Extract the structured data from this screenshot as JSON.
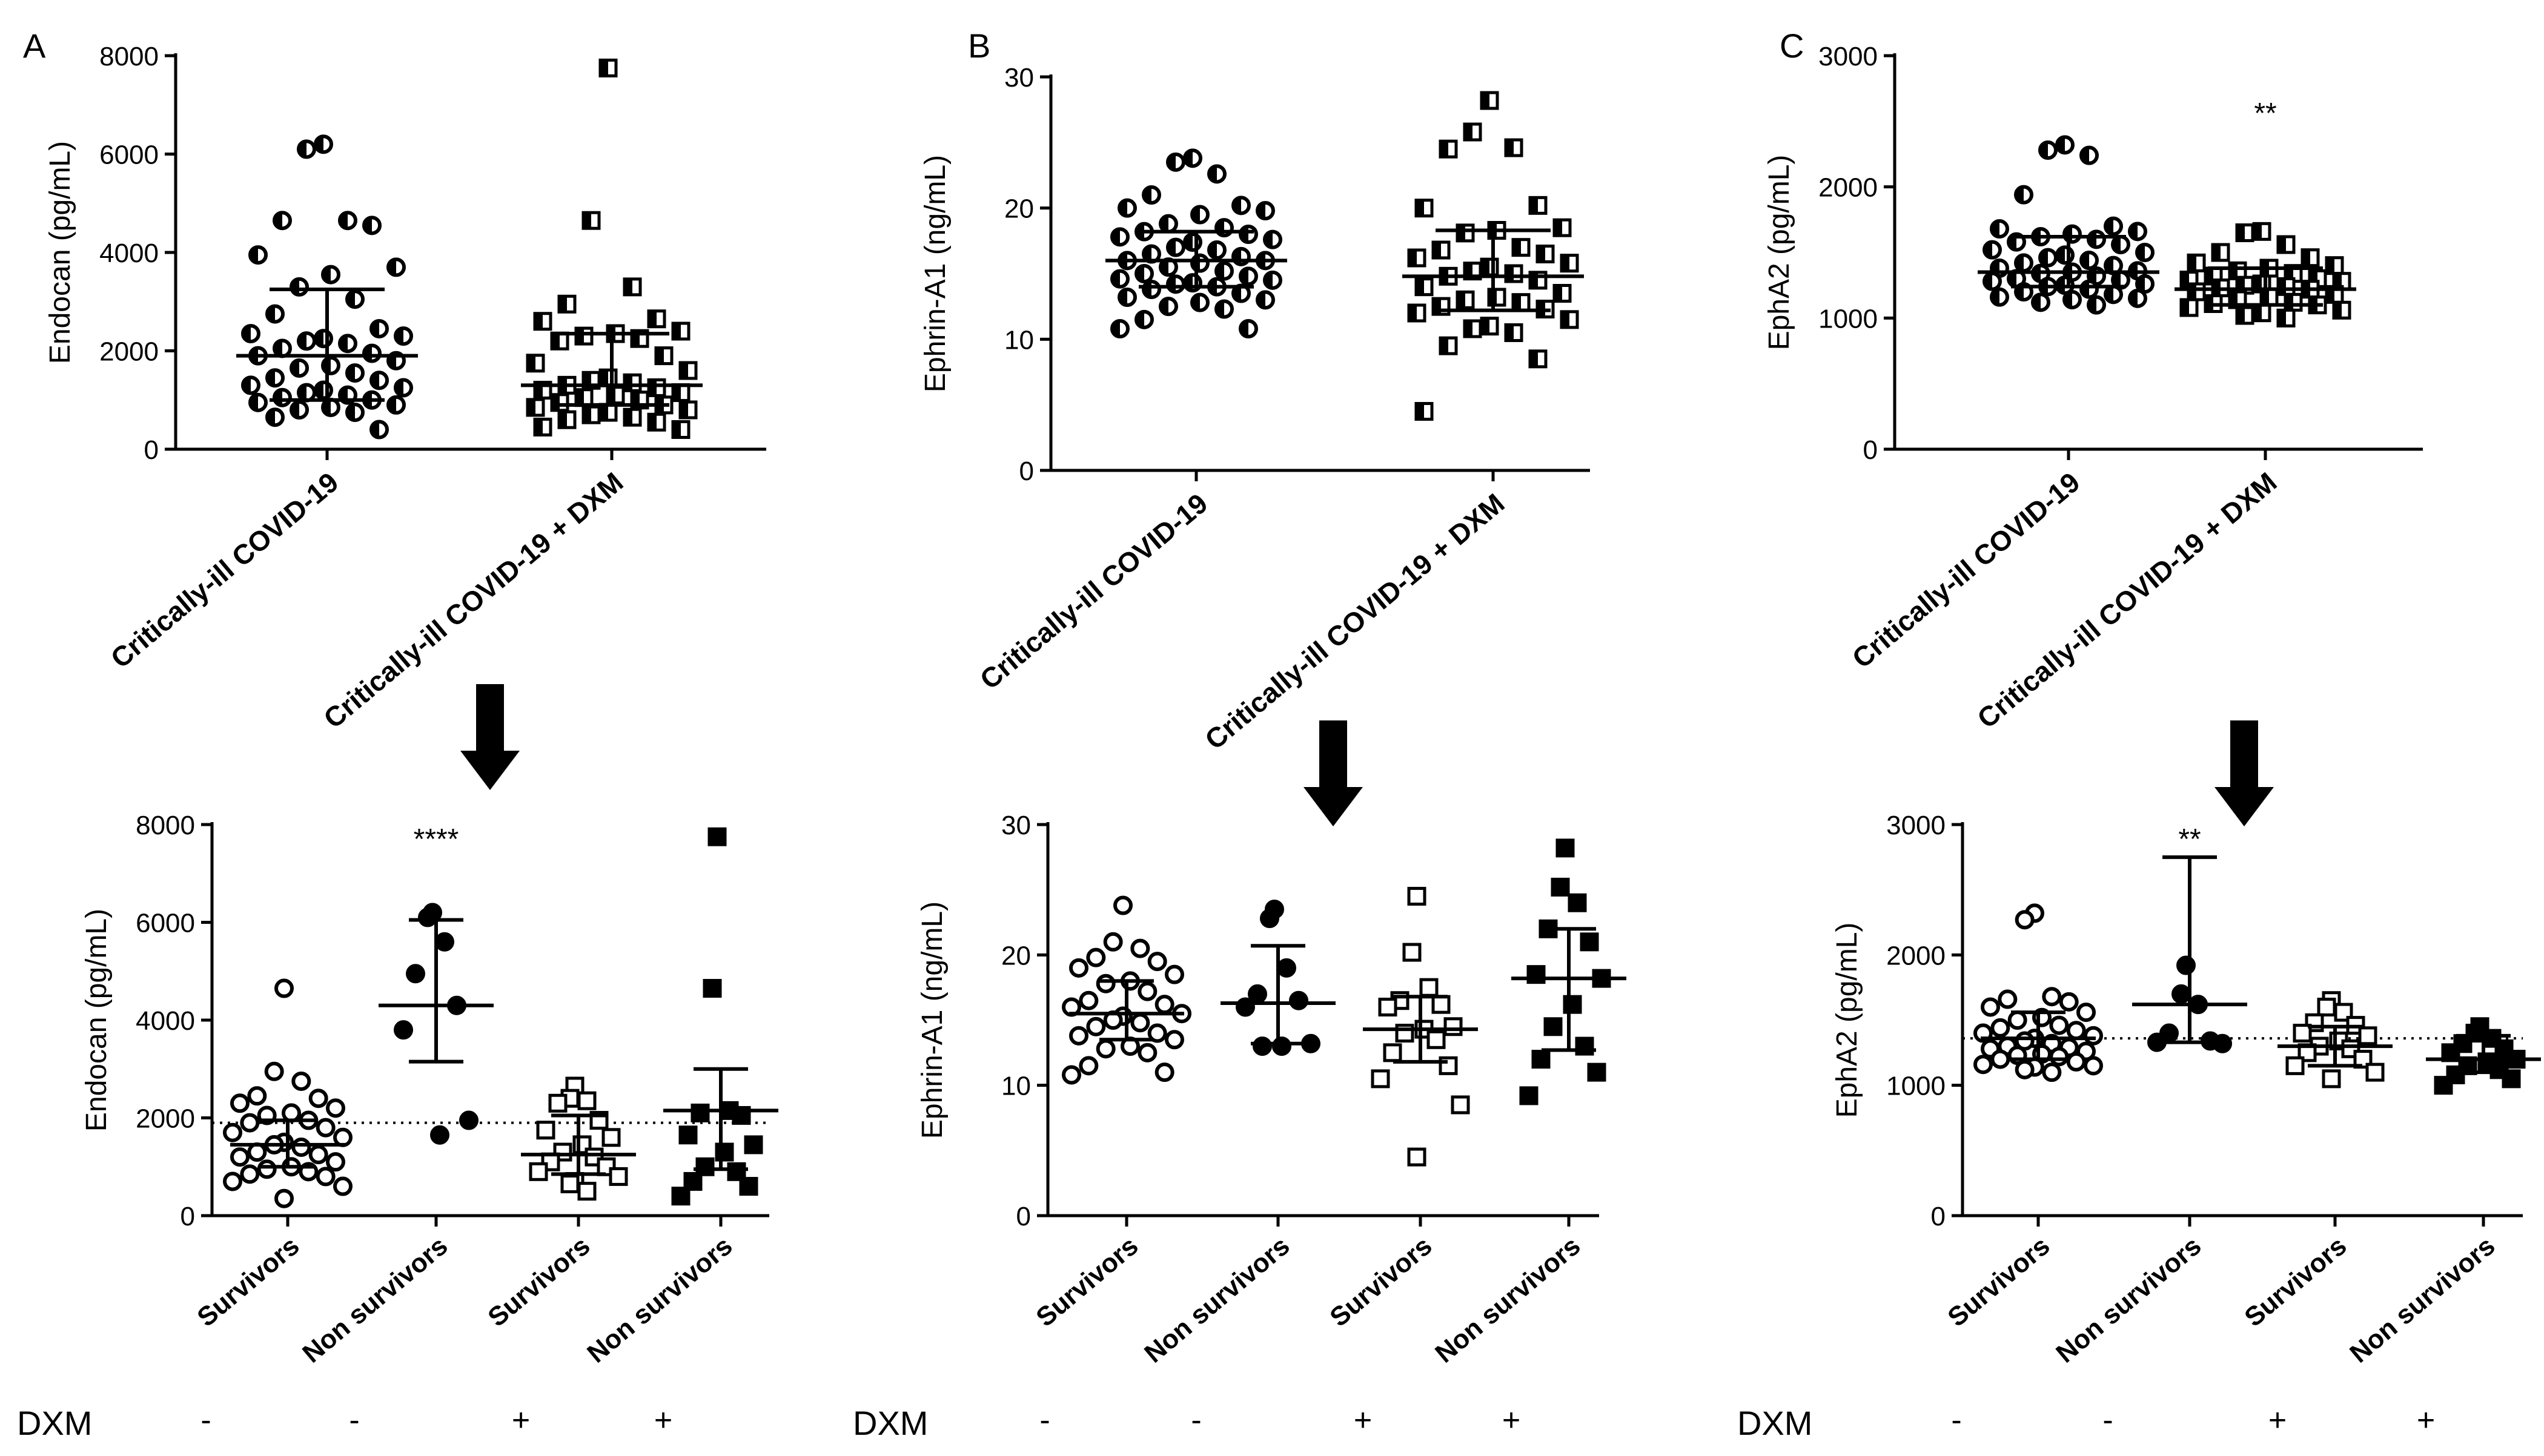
{
  "chart_data": [
    {
      "panel": "A",
      "type": "scatter",
      "row": "top",
      "ylabel": "Endocan (pg/mL)",
      "ylim": [
        0,
        8000
      ],
      "yticks": [
        0,
        2000,
        4000,
        6000,
        8000
      ],
      "categories": [
        "Critically-ill COVID-19",
        "Critically-ill COVID-19 + DXM"
      ],
      "marker_styles": [
        "half-circle",
        "half-square"
      ],
      "stats": [
        {
          "median": 1900,
          "q1": 1000,
          "q3": 3250
        },
        {
          "median": 1300,
          "q1": 900,
          "q3": 2350
        }
      ],
      "annotations": [
        "",
        ""
      ],
      "points": [
        [
          6200,
          6100,
          4650,
          4650,
          4550,
          3950,
          3700,
          3550,
          3300,
          3050,
          2750,
          2450,
          2350,
          2300,
          2250,
          2200,
          2150,
          2050,
          1950,
          1900,
          1800,
          1700,
          1650,
          1550,
          1450,
          1400,
          1300,
          1250,
          1200,
          1150,
          1100,
          1050,
          1000,
          950,
          900,
          850,
          800,
          750,
          650,
          400
        ],
        [
          7750,
          4650,
          3300,
          2950,
          2650,
          2600,
          2400,
          2350,
          2300,
          2250,
          2200,
          1900,
          1750,
          1600,
          1450,
          1400,
          1350,
          1300,
          1250,
          1200,
          1150,
          1100,
          1050,
          1000,
          950,
          900,
          850,
          800,
          750,
          700,
          650,
          600,
          550,
          450,
          400
        ]
      ]
    },
    {
      "panel": "B",
      "type": "scatter",
      "row": "top",
      "ylabel": "Ephrin-A1 (ng/mL)",
      "ylim": [
        0,
        30
      ],
      "yticks": [
        0,
        10,
        20,
        30
      ],
      "categories": [
        "Critically-ill COVID-19",
        "Critically-ill COVID-19 + DXM"
      ],
      "marker_styles": [
        "half-circle",
        "half-square"
      ],
      "stats": [
        {
          "median": 16.0,
          "q1": 14.0,
          "q3": 18.2
        },
        {
          "median": 14.8,
          "q1": 12.2,
          "q3": 18.3
        }
      ],
      "annotations": [
        "",
        ""
      ],
      "points": [
        [
          23.8,
          23.5,
          22.6,
          21.0,
          20.2,
          20.0,
          19.8,
          19.5,
          18.8,
          18.5,
          18.2,
          18.0,
          17.8,
          17.6,
          17.4,
          17.0,
          16.8,
          16.5,
          16.3,
          16.0,
          16.0,
          15.8,
          15.5,
          15.2,
          15.0,
          14.8,
          14.6,
          14.5,
          14.3,
          14.2,
          14.0,
          13.8,
          13.5,
          13.2,
          13.0,
          12.8,
          12.5,
          12.3,
          11.5,
          10.8,
          10.8
        ],
        [
          28.2,
          25.8,
          24.6,
          24.5,
          20.2,
          20.0,
          18.5,
          18.3,
          18.1,
          17.0,
          16.8,
          16.5,
          16.2,
          15.8,
          15.5,
          15.2,
          15.0,
          14.8,
          14.5,
          14.0,
          13.5,
          13.2,
          13.0,
          12.8,
          12.5,
          12.3,
          12.0,
          11.5,
          11.0,
          10.8,
          10.5,
          9.5,
          8.5,
          4.5
        ]
      ]
    },
    {
      "panel": "C",
      "type": "scatter",
      "row": "top",
      "ylabel": "EphA2 (pg/mL)",
      "ylim": [
        0,
        3000
      ],
      "yticks": [
        0,
        1000,
        2000,
        3000
      ],
      "categories": [
        "Critically-ill COVID-19",
        "Critically-ill COVID-19 + DXM"
      ],
      "marker_styles": [
        "half-circle",
        "half-square"
      ],
      "stats": [
        {
          "median": 1350,
          "q1": 1240,
          "q3": 1620
        },
        {
          "median": 1220,
          "q1": 1100,
          "q3": 1380
        }
      ],
      "annotations": [
        "",
        "**"
      ],
      "points": [
        [
          2320,
          2280,
          2240,
          1940,
          1700,
          1680,
          1660,
          1640,
          1620,
          1600,
          1580,
          1560,
          1520,
          1500,
          1480,
          1460,
          1440,
          1420,
          1400,
          1380,
          1360,
          1350,
          1340,
          1320,
          1300,
          1290,
          1280,
          1260,
          1250,
          1240,
          1220,
          1200,
          1180,
          1160,
          1150,
          1140,
          1120,
          1100
        ],
        [
          1660,
          1650,
          1560,
          1500,
          1460,
          1420,
          1400,
          1380,
          1360,
          1340,
          1320,
          1300,
          1290,
          1280,
          1260,
          1250,
          1240,
          1230,
          1220,
          1200,
          1180,
          1160,
          1140,
          1120,
          1110,
          1100,
          1080,
          1060,
          1040,
          1020,
          1000
        ]
      ]
    },
    {
      "panel": "A",
      "type": "scatter",
      "row": "bottom",
      "ylabel": "Endocan (pg/mL)",
      "ylim": [
        0,
        8000
      ],
      "yticks": [
        0,
        2000,
        4000,
        6000,
        8000
      ],
      "categories": [
        "Survivors",
        "Non survivors",
        "Survivors",
        "Non survivors"
      ],
      "dxm": [
        "-",
        "-",
        "+",
        "+"
      ],
      "marker_styles": [
        "open-circle",
        "filled-circle",
        "open-square",
        "filled-square"
      ],
      "reference_line": 1900,
      "stats": [
        {
          "median": 1450,
          "q1": 1000,
          "q3": 1950
        },
        {
          "median": 4300,
          "q1": 3150,
          "q3": 6050
        },
        {
          "median": 1250,
          "q1": 850,
          "q3": 2050
        },
        {
          "median": 2150,
          "q1": 950,
          "q3": 3000
        }
      ],
      "annotations": [
        "",
        "****",
        "",
        ""
      ],
      "points": [
        [
          4650,
          2950,
          2750,
          2450,
          2400,
          2300,
          2200,
          2100,
          2050,
          1950,
          1900,
          1800,
          1700,
          1600,
          1500,
          1450,
          1400,
          1300,
          1250,
          1200,
          1100,
          1000,
          950,
          900,
          850,
          800,
          700,
          600,
          350
        ],
        [
          6200,
          6100,
          5600,
          4950,
          4300,
          3800,
          1950,
          1650
        ],
        [
          2650,
          2400,
          2350,
          2300,
          1950,
          1750,
          1600,
          1450,
          1300,
          1200,
          1100,
          1000,
          900,
          800,
          700,
          650,
          500
        ],
        [
          7750,
          4650,
          2150,
          2100,
          2050,
          1650,
          1450,
          1300,
          1000,
          900,
          700,
          600,
          400
        ]
      ]
    },
    {
      "panel": "B",
      "type": "scatter",
      "row": "bottom",
      "ylabel": "Ephrin-A1 (ng/mL)",
      "ylim": [
        0,
        30
      ],
      "yticks": [
        0,
        10,
        20,
        30
      ],
      "categories": [
        "Survivors",
        "Non survivors",
        "Survivors",
        "Non survivors"
      ],
      "dxm": [
        "-",
        "-",
        "+",
        "+"
      ],
      "marker_styles": [
        "open-circle",
        "filled-circle",
        "open-square",
        "filled-square"
      ],
      "stats": [
        {
          "median": 15.5,
          "q1": 13.5,
          "q3": 18.0
        },
        {
          "median": 16.3,
          "q1": 13.2,
          "q3": 20.7
        },
        {
          "median": 14.3,
          "q1": 11.8,
          "q3": 16.8
        },
        {
          "median": 18.2,
          "q1": 12.7,
          "q3": 22.0
        }
      ],
      "annotations": [
        "",
        "",
        "",
        ""
      ],
      "points": [
        [
          23.8,
          21.0,
          20.5,
          19.8,
          19.5,
          19.0,
          18.5,
          18.0,
          17.8,
          17.2,
          16.5,
          16.2,
          16.0,
          15.5,
          15.3,
          15.0,
          14.8,
          14.5,
          14.0,
          13.8,
          13.5,
          13.0,
          12.8,
          12.5,
          11.5,
          11.0,
          10.8
        ],
        [
          23.5,
          22.8,
          19.0,
          17.0,
          16.5,
          16.0,
          13.2,
          13.0,
          13.0
        ],
        [
          24.5,
          20.2,
          17.5,
          16.5,
          16.2,
          16.0,
          14.5,
          14.3,
          14.0,
          13.5,
          12.5,
          11.5,
          10.5,
          8.5,
          4.5
        ],
        [
          28.2,
          25.2,
          24.0,
          22.0,
          21.0,
          18.5,
          18.2,
          16.2,
          14.5,
          13.0,
          12.0,
          11.0,
          9.2
        ]
      ]
    },
    {
      "panel": "C",
      "type": "scatter",
      "row": "bottom",
      "ylabel": "EphA2 (pg/mL)",
      "ylim": [
        0,
        3000
      ],
      "yticks": [
        0,
        1000,
        2000,
        3000
      ],
      "categories": [
        "Survivors",
        "Non survivors",
        "Survivors",
        "Non survivors"
      ],
      "dxm": [
        "-",
        "-",
        "+",
        "+"
      ],
      "marker_styles": [
        "open-circle",
        "filled-circle",
        "open-square",
        "filled-square"
      ],
      "reference_line": 1360,
      "stats": [
        {
          "median": 1360,
          "q1": 1200,
          "q3": 1560
        },
        {
          "median": 1620,
          "q1": 1330,
          "q3": 2750
        },
        {
          "median": 1300,
          "q1": 1150,
          "q3": 1450
        },
        {
          "median": 1200,
          "q1": 1100,
          "q3": 1380
        }
      ],
      "annotations": [
        "",
        "**",
        "",
        ""
      ],
      "points": [
        [
          2320,
          2270,
          1680,
          1660,
          1640,
          1600,
          1560,
          1520,
          1500,
          1460,
          1440,
          1420,
          1400,
          1380,
          1360,
          1340,
          1320,
          1300,
          1290,
          1280,
          1260,
          1240,
          1230,
          1220,
          1200,
          1180,
          1160,
          1150,
          1140,
          1120,
          1100
        ],
        [
          1920,
          1700,
          1620,
          1400,
          1340,
          1330,
          1320
        ],
        [
          1650,
          1600,
          1560,
          1480,
          1460,
          1400,
          1380,
          1340,
          1300,
          1280,
          1250,
          1200,
          1150,
          1100,
          1050
        ],
        [
          1450,
          1400,
          1360,
          1320,
          1280,
          1250,
          1200,
          1180,
          1150,
          1120,
          1080,
          1050,
          1000
        ]
      ]
    }
  ],
  "figure": {
    "panel_labels": [
      "A",
      "B",
      "C"
    ],
    "dxm_label": "DXM",
    "dxm_signs": [
      "-",
      "-",
      "+",
      "+"
    ]
  }
}
